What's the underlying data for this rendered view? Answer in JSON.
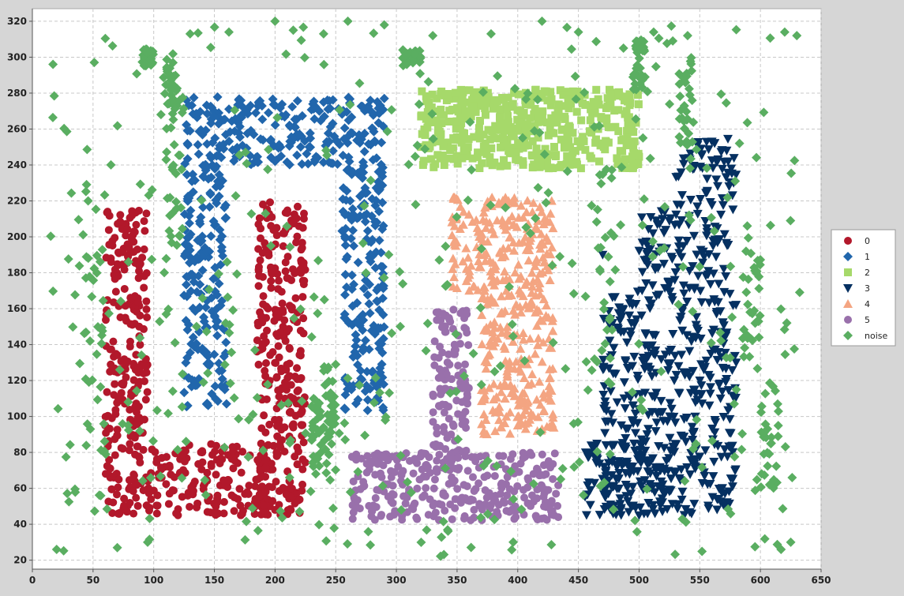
{
  "chart_data": {
    "type": "scatter",
    "title": "",
    "xlabel": "",
    "ylabel": "",
    "xlim": [
      0,
      650
    ],
    "ylim": [
      15,
      327
    ],
    "x_ticks": [
      0,
      50,
      100,
      150,
      200,
      250,
      300,
      350,
      400,
      450,
      500,
      550,
      600,
      650
    ],
    "y_ticks": [
      20,
      40,
      60,
      80,
      100,
      120,
      140,
      160,
      180,
      200,
      220,
      240,
      260,
      280,
      300,
      320
    ],
    "grid": true,
    "legend_position": "right",
    "background": "#ffffff",
    "series": [
      {
        "name": "0",
        "marker": "circle",
        "color": "#b2182b",
        "regions": [
          {
            "x": [
              60,
              95
            ],
            "y": [
              45,
              215
            ]
          },
          {
            "x": [
              95,
              200
            ],
            "y": [
              45,
              85
            ]
          },
          {
            "x": [
              185,
              225
            ],
            "y": [
              45,
              220
            ]
          }
        ],
        "points": [
          [
            62,
            214
          ],
          [
            94,
            213
          ],
          [
            88,
            150
          ],
          [
            60,
            95
          ],
          [
            120,
            45
          ],
          [
            200,
            48
          ],
          [
            223,
            205
          ],
          [
            190,
            218
          ],
          [
            140,
            80
          ],
          [
            78,
            47
          ],
          [
            165,
            83
          ],
          [
            215,
            110
          ]
        ]
      },
      {
        "name": "1",
        "marker": "diamond",
        "color": "#2166ac",
        "regions": [
          {
            "x": [
              125,
              290
            ],
            "y": [
              240,
              278
            ]
          },
          {
            "x": [
              125,
              160
            ],
            "y": [
              105,
              240
            ]
          },
          {
            "x": [
              255,
              290
            ],
            "y": [
              103,
              240
            ]
          }
        ],
        "points": [
          [
            127,
            276
          ],
          [
            290,
            277
          ],
          [
            160,
            107
          ],
          [
            128,
            106
          ],
          [
            258,
            104
          ],
          [
            289,
            105
          ],
          [
            200,
            242
          ],
          [
            240,
            275
          ]
        ]
      },
      {
        "name": "2",
        "marker": "square",
        "color": "#a6d96a",
        "regions": [
          {
            "x": [
              320,
              500
            ],
            "y": [
              238,
              282
            ]
          }
        ],
        "points": [
          [
            321,
            281
          ],
          [
            499,
            279
          ],
          [
            322,
            240
          ],
          [
            496,
            240
          ],
          [
            410,
            266
          ],
          [
            470,
            252
          ]
        ]
      },
      {
        "name": "3",
        "marker": "triangle-down",
        "color": "#053061",
        "regions": [
          {
            "x": [
              470,
              580
            ],
            "y": [
              45,
              170
            ]
          },
          {
            "x": [
              500,
              575
            ],
            "y": [
              170,
              215
            ]
          },
          {
            "x": [
              530,
              580
            ],
            "y": [
              215,
              255
            ]
          },
          {
            "x": [
              455,
              530
            ],
            "y": [
              45,
              85
            ]
          }
        ],
        "points": [
          [
            560,
            253
          ],
          [
            576,
            238
          ],
          [
            456,
            80
          ],
          [
            507,
            46
          ],
          [
            580,
            130
          ],
          [
            470,
            190
          ],
          [
            500,
            45
          ]
        ]
      },
      {
        "name": "4",
        "marker": "triangle-up",
        "color": "#f4a582",
        "regions": [
          {
            "x": [
              345,
              430
            ],
            "y": [
              170,
              222
            ]
          },
          {
            "x": [
              370,
              430
            ],
            "y": [
              90,
              170
            ]
          }
        ],
        "points": [
          [
            347,
            222
          ],
          [
            428,
            220
          ],
          [
            372,
            92
          ],
          [
            420,
            93
          ],
          [
            400,
            95
          ],
          [
            360,
            170
          ]
        ]
      },
      {
        "name": "5",
        "marker": "circle",
        "color": "#9970ab",
        "regions": [
          {
            "x": [
              330,
              360
            ],
            "y": [
              75,
              160
            ]
          },
          {
            "x": [
              262,
              435
            ],
            "y": [
              42,
              80
            ]
          }
        ],
        "points": [
          [
            264,
            43
          ],
          [
            430,
            45
          ],
          [
            333,
            158
          ],
          [
            358,
            157
          ],
          [
            345,
            90
          ],
          [
            300,
            78
          ],
          [
            420,
            60
          ]
        ]
      },
      {
        "name": "noise",
        "marker": "diamond",
        "color": "#5aae61",
        "regions": [
          {
            "x": [
              15,
              635
            ],
            "y": [
              20,
              320
            ]
          }
        ],
        "points": [
          [
            17,
            296
          ],
          [
            20,
            26
          ],
          [
            70,
            27
          ],
          [
            95,
            30
          ],
          [
            130,
            313
          ],
          [
            162,
            314
          ],
          [
            200,
            320
          ],
          [
            215,
            315
          ],
          [
            240,
            313
          ],
          [
            260,
            320
          ],
          [
            290,
            318
          ],
          [
            330,
            312
          ],
          [
            378,
            313
          ],
          [
            420,
            320
          ],
          [
            450,
            314
          ],
          [
            512,
            314
          ],
          [
            540,
            312
          ],
          [
            620,
            314
          ],
          [
            630,
            312
          ],
          [
            625,
            30
          ],
          [
            617,
            26
          ]
        ]
      }
    ],
    "legend_entries": [
      "0",
      "1",
      "2",
      "3",
      "4",
      "5",
      "noise"
    ]
  }
}
